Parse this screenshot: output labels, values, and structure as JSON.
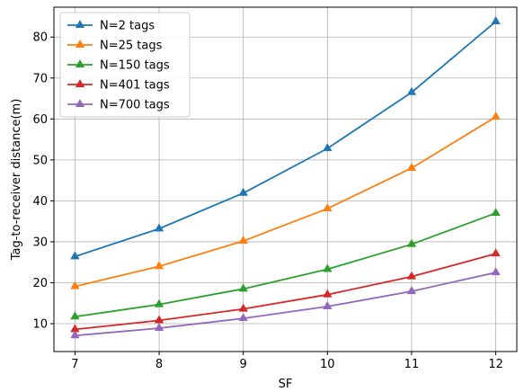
{
  "chart_data": {
    "type": "line",
    "title": "",
    "xlabel": "SF",
    "ylabel": "Tag-to-receiver distance(m)",
    "x": [
      7,
      8,
      9,
      10,
      11,
      12
    ],
    "xlim": [
      6.75,
      12.25
    ],
    "ylim": [
      3.2,
      87.3
    ],
    "xticks": [
      7,
      8,
      9,
      10,
      11,
      12
    ],
    "yticks": [
      10,
      20,
      30,
      40,
      50,
      60,
      70,
      80
    ],
    "grid": true,
    "legend_position": "upper-left",
    "marker": "triangle-up",
    "series": [
      {
        "name": "N=2 tags",
        "color": "#1f77b4",
        "values": [
          26.4,
          33.2,
          41.9,
          52.8,
          66.5,
          83.8
        ]
      },
      {
        "name": "N=25 tags",
        "color": "#ff7f0e",
        "values": [
          19.1,
          24.0,
          30.2,
          38.1,
          48.0,
          60.5
        ]
      },
      {
        "name": "N=150 tags",
        "color": "#2ca02c",
        "values": [
          11.7,
          14.7,
          18.5,
          23.3,
          29.4,
          37.0
        ]
      },
      {
        "name": "N=401 tags",
        "color": "#d62728",
        "values": [
          8.6,
          10.8,
          13.6,
          17.1,
          21.5,
          27.1
        ]
      },
      {
        "name": "N=700 tags",
        "color": "#9467bd",
        "values": [
          7.1,
          8.9,
          11.3,
          14.2,
          17.9,
          22.5
        ]
      }
    ]
  }
}
